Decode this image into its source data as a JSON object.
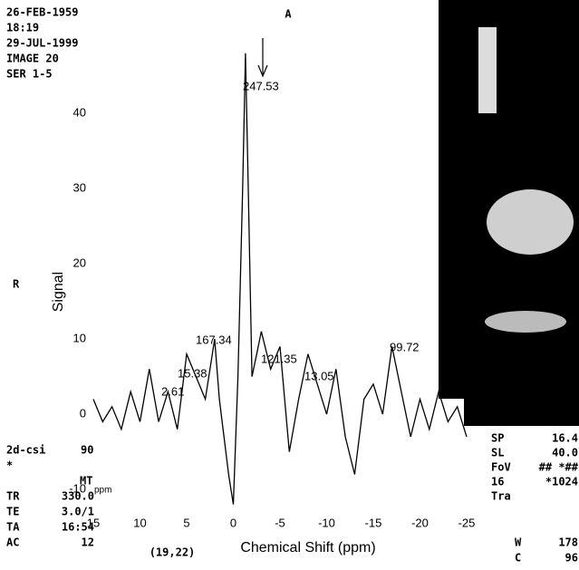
{
  "chart_data": {
    "type": "line",
    "x_label": "Chemical Shift (ppm)",
    "y_label": "Signal",
    "color": "#000000",
    "xlim": [
      15,
      -25
    ],
    "xticks": [
      15,
      10,
      5,
      0,
      -5,
      -10,
      -15,
      -20,
      -25
    ],
    "ylim": [
      -13,
      54
    ],
    "yticks": [
      -10,
      0,
      10,
      20,
      30,
      40
    ],
    "x": [
      15,
      14,
      13,
      12,
      11,
      10,
      9,
      8,
      7,
      6,
      5,
      4,
      3,
      2,
      1.5,
      1,
      0.5,
      0,
      -0.5,
      -1,
      -1.3,
      -1.6,
      -2,
      -2.5,
      -3,
      -4,
      -5,
      -6,
      -7,
      -8,
      -9,
      -10,
      -11,
      -12,
      -13,
      -14,
      -15,
      -16,
      -17,
      -18,
      -19,
      -20,
      -21,
      -22,
      -23,
      -24,
      -25
    ],
    "values": [
      2,
      -1,
      1,
      -2,
      3,
      -1,
      6,
      -1,
      3,
      -2,
      8,
      5,
      2,
      10,
      2,
      -3,
      -8,
      -12,
      5,
      30,
      48,
      30,
      5,
      8,
      11,
      6,
      9,
      -5,
      2,
      8,
      4,
      0,
      6,
      -3,
      -8,
      2,
      4,
      0,
      9,
      3,
      -3,
      2,
      -2,
      3,
      -1,
      1,
      -3
    ],
    "annotations": [
      "247.53",
      "167.34",
      "121.35",
      "99.72",
      "2.61",
      "15.38",
      "13.05",
      "ppm"
    ]
  },
  "overlay": {
    "top_left": [
      "26-FEB-1959",
      "18:19",
      "29-JUL-1999",
      "IMAGE 20",
      "SER 1-5"
    ],
    "orientation_top": "A",
    "orientation_left": "R",
    "sequence": [
      "2d-csi",
      "90",
      "*",
      "MT"
    ],
    "params": [
      [
        "TR",
        "330.0"
      ],
      [
        "TE",
        "3.0/1"
      ],
      [
        "TA",
        "16:54"
      ],
      [
        "AC",
        "12"
      ]
    ],
    "voxel": "(19,22)",
    "right": [
      [
        "SP",
        "16.4"
      ],
      [
        "SL",
        "40.0"
      ],
      [
        "FoV",
        "## *##"
      ],
      [
        "16",
        "*1024"
      ],
      [
        "Tra",
        ""
      ]
    ],
    "window": [
      [
        "W",
        "178"
      ],
      [
        "C",
        "96"
      ]
    ]
  }
}
